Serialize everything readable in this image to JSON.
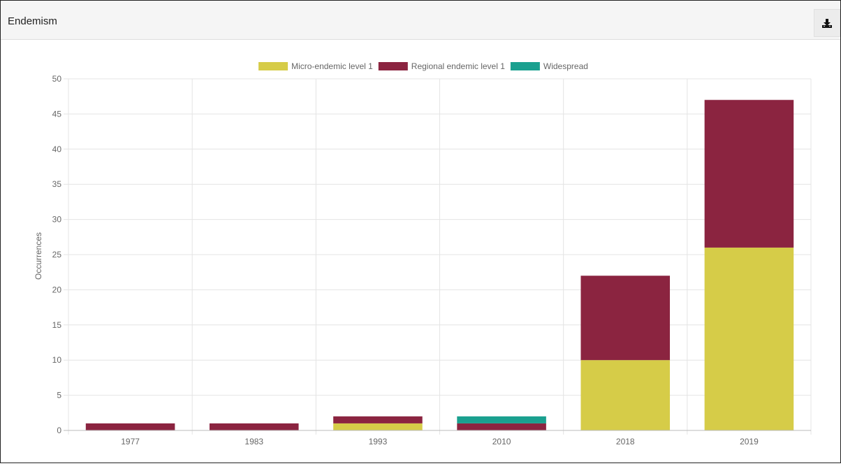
{
  "panel": {
    "title": "Endemism"
  },
  "toolbar": {
    "download_icon": "download-icon"
  },
  "colors": {
    "micro": "#d6cc48",
    "regional": "#8b2440",
    "widespread": "#1aa08f",
    "grid": "#e4e4e4",
    "axis": "#999999"
  },
  "chart_data": {
    "type": "bar",
    "stacked": true,
    "categories": [
      "1977",
      "1983",
      "1993",
      "2010",
      "2018",
      "2019"
    ],
    "series": [
      {
        "name": "Micro-endemic level 1",
        "values": [
          0,
          0,
          1,
          0,
          10,
          26
        ]
      },
      {
        "name": "Regional endemic level 1",
        "values": [
          1,
          1,
          1,
          1,
          12,
          21
        ]
      },
      {
        "name": "Widespread",
        "values": [
          0,
          0,
          0,
          1,
          0,
          0
        ]
      }
    ],
    "ylabel": "Occurrences",
    "xlabel": "",
    "ylim": [
      0,
      50
    ],
    "yticks": [
      0,
      5,
      10,
      15,
      20,
      25,
      30,
      35,
      40,
      45,
      50
    ],
    "grid": true,
    "legend_position": "top-center"
  }
}
